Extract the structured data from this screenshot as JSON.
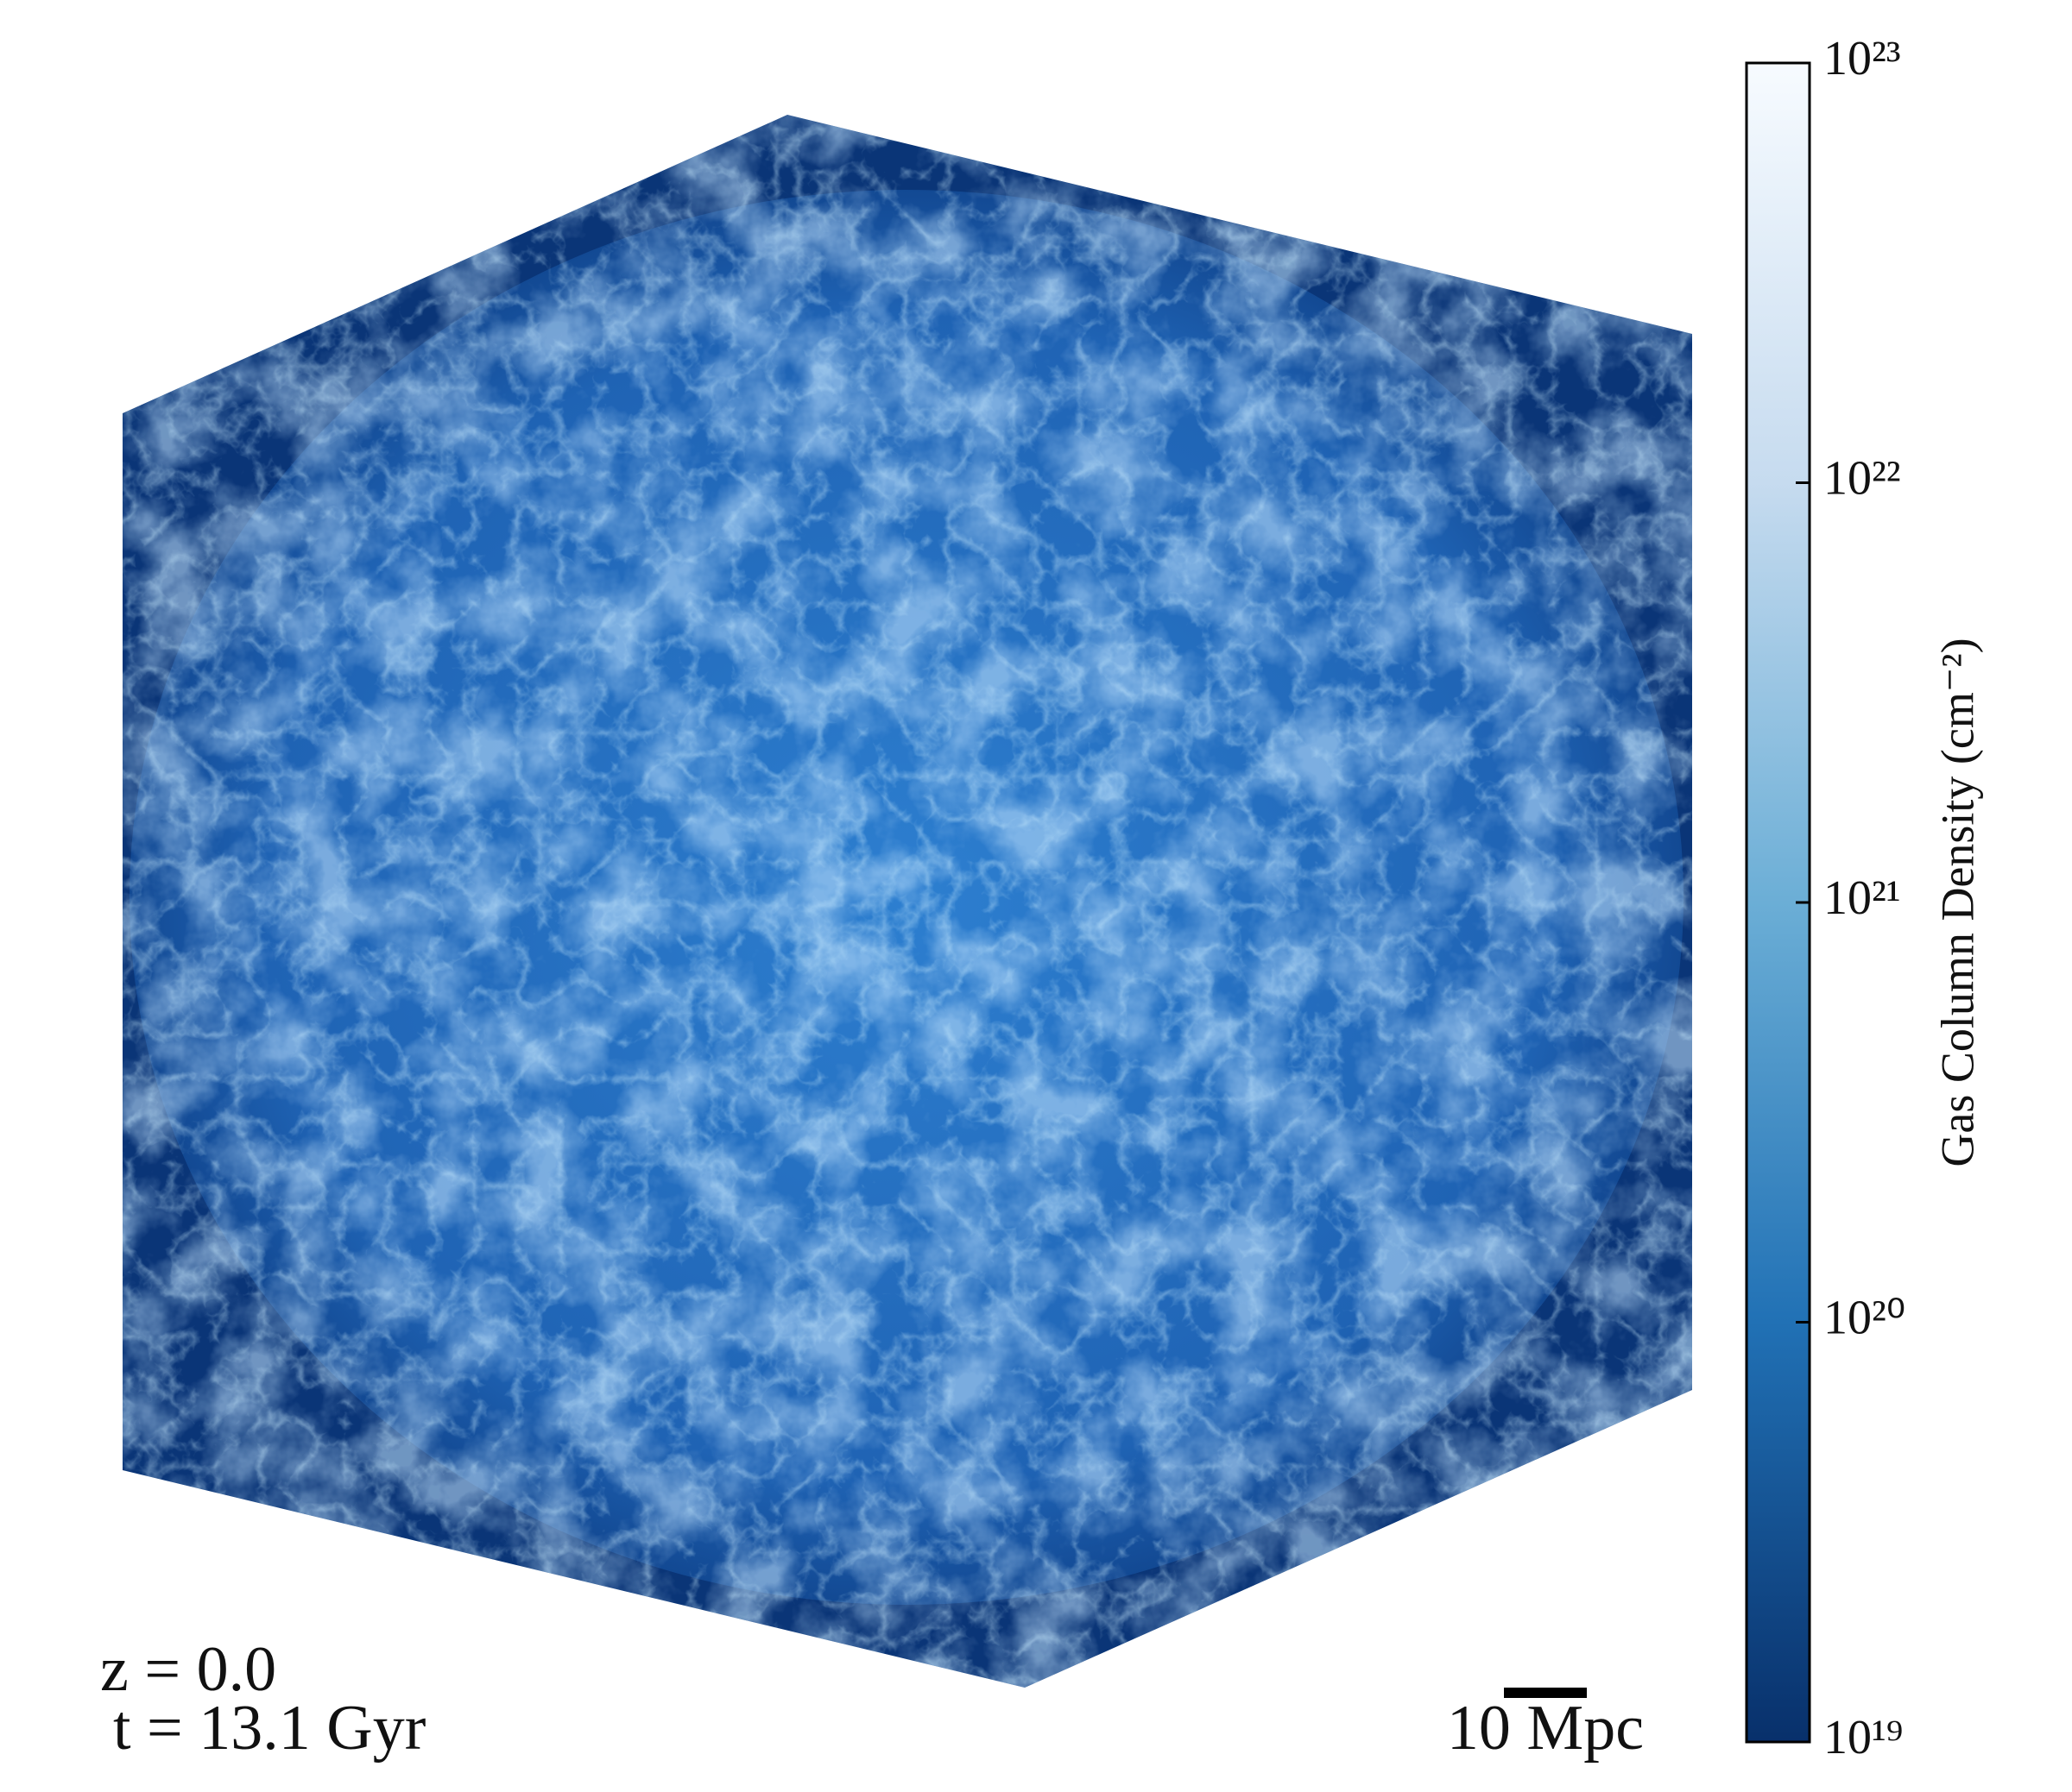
{
  "chart_data": {
    "type": "colorbar",
    "label": "Gas Column Density (cm⁻²)",
    "ylim": [
      1e+19,
      1e+23
    ],
    "yticks": [
      {
        "value": 1e+19,
        "label": "10¹⁹"
      },
      {
        "value": 1e+20,
        "label": "10²⁰"
      },
      {
        "value": 1e+21,
        "label": "10²¹"
      },
      {
        "value": 1e+22,
        "label": "10²²"
      },
      {
        "value": 1e+23,
        "label": "10²³"
      }
    ],
    "log_scale": true,
    "colors": [
      "#08306b",
      "#2171b5",
      "#6baed6",
      "#c6dbef",
      "#f7fbff"
    ]
  },
  "annotations": {
    "redshift": "z = 0.0",
    "time": "t = 13.1 Gyr",
    "scale_bar": "10 Mpc"
  }
}
